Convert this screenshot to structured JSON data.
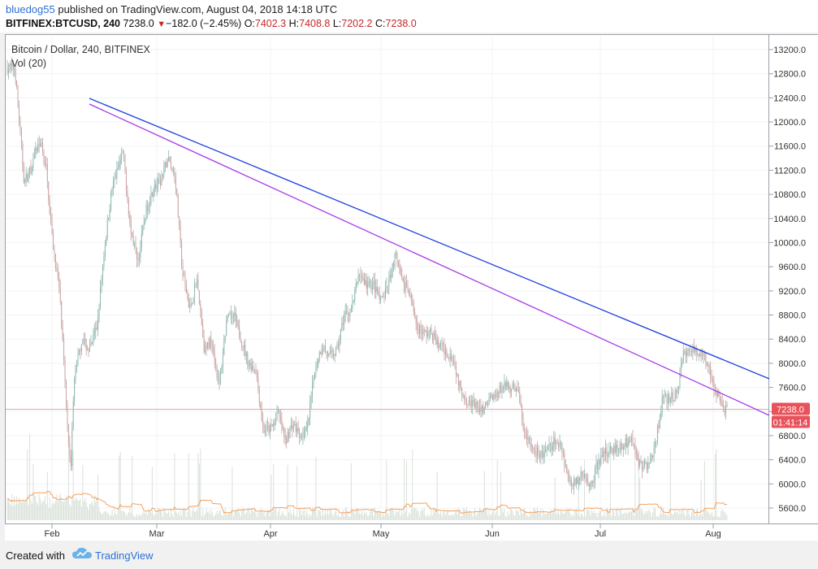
{
  "header": {
    "author": "bluedog55",
    "published_text": "published on TradingView.com, August 04, 2018 14:18 UTC",
    "symbol": "BITFINEX:BTCUSD, 240",
    "last": "7238.0",
    "change_arrow": "▼",
    "change": "−182.0 (−2.45%)",
    "o_label": "O:",
    "o_value": "7402.3",
    "h_label": "H:",
    "h_value": "7408.8",
    "l_label": "L:",
    "l_value": "7202.2",
    "c_label": "C:",
    "c_value": "7238.0"
  },
  "legend": {
    "title": "Bitcoin / Dollar, 240, BITFINEX",
    "volume": "Vol (20)"
  },
  "price_badges": {
    "price": "7238.0",
    "countdown": "01:41:14"
  },
  "footer": {
    "created_with": "Created with",
    "brand": "TradingView"
  },
  "colors": {
    "candle_up": "#8fb7b0",
    "candle_down": "#c9a3a3",
    "volume_bar": "#d9e0d9",
    "volume_ma": "#f5a15c",
    "trendline_blue": "#1f3fe0",
    "trendline_purple": "#a63ae8",
    "price_line": "#e8a5a5",
    "badge": "#e8525a",
    "brand": "#2d6fd6"
  },
  "chart_data": {
    "type": "candlestick",
    "title": "Bitcoin / Dollar, 240, BITFINEX",
    "x_ticks": [
      "Feb",
      "Mar",
      "Apr",
      "May",
      "Jun",
      "Jul",
      "Aug"
    ],
    "y_ticks": [
      13200,
      12800,
      12400,
      12000,
      11600,
      11200,
      10800,
      10400,
      10000,
      9600,
      9200,
      8800,
      8400,
      8000,
      7600,
      7200,
      6800,
      6400,
      6000,
      5600
    ],
    "y_tick_labels": [
      "13200.0",
      "12800.0",
      "12400.0",
      "12000.0",
      "11600.0",
      "11200.0",
      "10800.0",
      "10400.0",
      "10000.0",
      "9600.0",
      "9200.0",
      "8800.0",
      "8400.0",
      "8000.0",
      "7600.0",
      "7200.0",
      "6800.0",
      "6400.0",
      "6000.0",
      "5600.0"
    ],
    "ylim": [
      5400,
      13400
    ],
    "last_price": 7238.0,
    "price_path": [
      [
        "Jan 20",
        12900
      ],
      [
        "Jan 23",
        11000
      ],
      [
        "Jan 25",
        11200
      ],
      [
        "Jan 28",
        11700
      ],
      [
        "Jan 30",
        11300
      ],
      [
        "Feb 01",
        10100
      ],
      [
        "Feb 03",
        9200
      ],
      [
        "Feb 05",
        7100
      ],
      [
        "Feb 06",
        6300
      ],
      [
        "Feb 07",
        7800
      ],
      [
        "Feb 09",
        8400
      ],
      [
        "Feb 11",
        8200
      ],
      [
        "Feb 13",
        8600
      ],
      [
        "Feb 15",
        9900
      ],
      [
        "Feb 17",
        10900
      ],
      [
        "Feb 20",
        11500
      ],
      [
        "Feb 22",
        10200
      ],
      [
        "Feb 24",
        9700
      ],
      [
        "Feb 26",
        10500
      ],
      [
        "Feb 28",
        10900
      ],
      [
        "Mar 02",
        11000
      ],
      [
        "Mar 04",
        11400
      ],
      [
        "Mar 06",
        11100
      ],
      [
        "Mar 08",
        9500
      ],
      [
        "Mar 10",
        8900
      ],
      [
        "Mar 12",
        9400
      ],
      [
        "Mar 14",
        8200
      ],
      [
        "Mar 16",
        8400
      ],
      [
        "Mar 18",
        7600
      ],
      [
        "Mar 20",
        8700
      ],
      [
        "Mar 22",
        8800
      ],
      [
        "Mar 24",
        8400
      ],
      [
        "Mar 26",
        8000
      ],
      [
        "Mar 28",
        7900
      ],
      [
        "Mar 30",
        6900
      ],
      [
        "Apr 01",
        6900
      ],
      [
        "Apr 03",
        7200
      ],
      [
        "Apr 05",
        6700
      ],
      [
        "Apr 07",
        7000
      ],
      [
        "Apr 09",
        6800
      ],
      [
        "Apr 11",
        6900
      ],
      [
        "Apr 13",
        7900
      ],
      [
        "Apr 15",
        8300
      ],
      [
        "Apr 17",
        8100
      ],
      [
        "Apr 19",
        8200
      ],
      [
        "Apr 21",
        8800
      ],
      [
        "Apr 23",
        8900
      ],
      [
        "Apr 25",
        9500
      ],
      [
        "Apr 27",
        9300
      ],
      [
        "Apr 29",
        9300
      ],
      [
        "May 01",
        9000
      ],
      [
        "May 03",
        9300
      ],
      [
        "May 05",
        9800
      ],
      [
        "May 07",
        9300
      ],
      [
        "May 09",
        9200
      ],
      [
        "May 11",
        8600
      ],
      [
        "May 13",
        8500
      ],
      [
        "May 15",
        8500
      ],
      [
        "May 17",
        8300
      ],
      [
        "May 19",
        8200
      ],
      [
        "May 21",
        8100
      ],
      [
        "May 23",
        7600
      ],
      [
        "May 25",
        7400
      ],
      [
        "May 27",
        7300
      ],
      [
        "May 29",
        7200
      ],
      [
        "May 31",
        7400
      ],
      [
        "Jun 02",
        7500
      ],
      [
        "Jun 04",
        7600
      ],
      [
        "Jun 06",
        7600
      ],
      [
        "Jun 08",
        7600
      ],
      [
        "Jun 10",
        6800
      ],
      [
        "Jun 12",
        6600
      ],
      [
        "Jun 14",
        6500
      ],
      [
        "Jun 16",
        6500
      ],
      [
        "Jun 18",
        6700
      ],
      [
        "Jun 20",
        6700
      ],
      [
        "Jun 22",
        6100
      ],
      [
        "Jun 24",
        6000
      ],
      [
        "Jun 26",
        6200
      ],
      [
        "Jun 28",
        5900
      ],
      [
        "Jun 30",
        6300
      ],
      [
        "Jul 02",
        6500
      ],
      [
        "Jul 04",
        6600
      ],
      [
        "Jul 06",
        6600
      ],
      [
        "Jul 08",
        6700
      ],
      [
        "Jul 10",
        6700
      ],
      [
        "Jul 12",
        6300
      ],
      [
        "Jul 14",
        6300
      ],
      [
        "Jul 16",
        6600
      ],
      [
        "Jul 18",
        7400
      ],
      [
        "Jul 20",
        7400
      ],
      [
        "Jul 22",
        7500
      ],
      [
        "Jul 24",
        8200
      ],
      [
        "Jul 26",
        8200
      ],
      [
        "Jul 28",
        8200
      ],
      [
        "Jul 30",
        8100
      ],
      [
        "Aug 01",
        7600
      ],
      [
        "Aug 03",
        7400
      ],
      [
        "Aug 04",
        7238
      ]
    ]
  }
}
